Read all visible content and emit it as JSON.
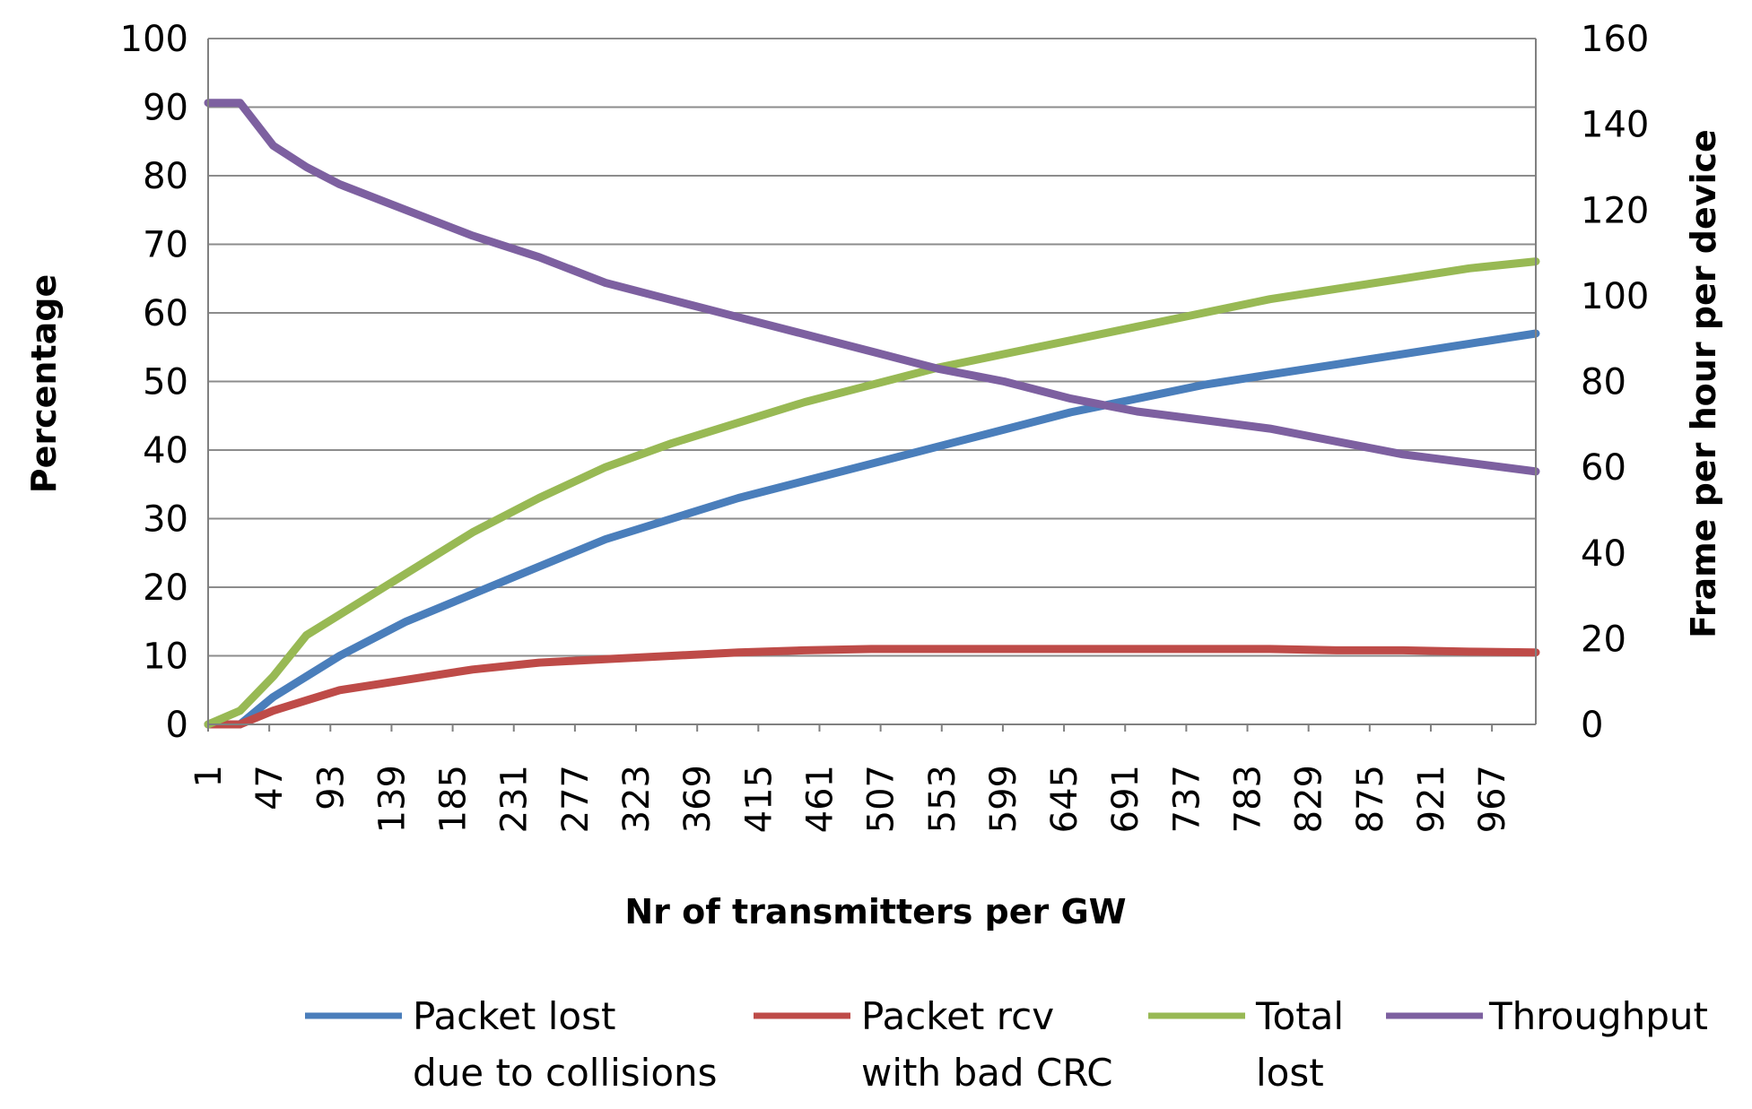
{
  "chart_data": {
    "type": "line",
    "xlabel": "Nr of transmitters per GW",
    "ylabel": "Percentage",
    "y2label": "Frame per hour per device",
    "x_tick_labels": [
      "1",
      "47",
      "93",
      "139",
      "185",
      "231",
      "277",
      "323",
      "369",
      "415",
      "461",
      "507",
      "553",
      "599",
      "645",
      "691",
      "737",
      "783",
      "829",
      "875",
      "921",
      "967"
    ],
    "xlim": [
      1,
      1000
    ],
    "ylim": [
      0,
      100
    ],
    "y_ticks": [
      0,
      10,
      20,
      30,
      40,
      50,
      60,
      70,
      80,
      90,
      100
    ],
    "y2lim": [
      0,
      160
    ],
    "y2_ticks": [
      0,
      20,
      40,
      60,
      80,
      100,
      120,
      140,
      160
    ],
    "grid": true,
    "legend_position": "bottom",
    "x": [
      1,
      25,
      50,
      75,
      100,
      150,
      200,
      250,
      300,
      350,
      400,
      450,
      500,
      550,
      600,
      650,
      700,
      750,
      800,
      850,
      900,
      950,
      1000
    ],
    "series": [
      {
        "name": "Packet lost due to collisions",
        "legend_lines": [
          "Packet lost",
          "due to collisions"
        ],
        "color": "#4a7ebb",
        "axis": "left",
        "values": [
          0,
          0,
          4,
          7,
          10,
          15,
          19,
          23,
          27,
          30,
          33,
          35.5,
          38,
          40.5,
          43,
          45.5,
          47.5,
          49.5,
          51,
          52.5,
          54,
          55.5,
          57
        ]
      },
      {
        "name": "Packet rcv with bad CRC",
        "legend_lines": [
          "Packet rcv",
          "with bad CRC"
        ],
        "color": "#be4b48",
        "axis": "left",
        "values": [
          0,
          0,
          2,
          3.5,
          5,
          6.5,
          8,
          9,
          9.5,
          10,
          10.5,
          10.8,
          11,
          11,
          11,
          11,
          11,
          11,
          11,
          10.8,
          10.8,
          10.6,
          10.5
        ]
      },
      {
        "name": "Total lost",
        "legend_lines": [
          "Total",
          "lost"
        ],
        "color": "#98b954",
        "axis": "left",
        "values": [
          0,
          2,
          7,
          13,
          16,
          22,
          28,
          33,
          37.5,
          41,
          44,
          47,
          49.5,
          52,
          54,
          56,
          58,
          60,
          62,
          63.5,
          65,
          66.5,
          67.5
        ]
      },
      {
        "name": "Throughput",
        "legend_lines": [
          "Throughput"
        ],
        "color": "#7d60a0",
        "axis": "right",
        "values": [
          145,
          145,
          135,
          130,
          126,
          120,
          114,
          109,
          103,
          99,
          95,
          91,
          87,
          83,
          80,
          76,
          73,
          71,
          69,
          66,
          63,
          61,
          59
        ]
      }
    ]
  }
}
